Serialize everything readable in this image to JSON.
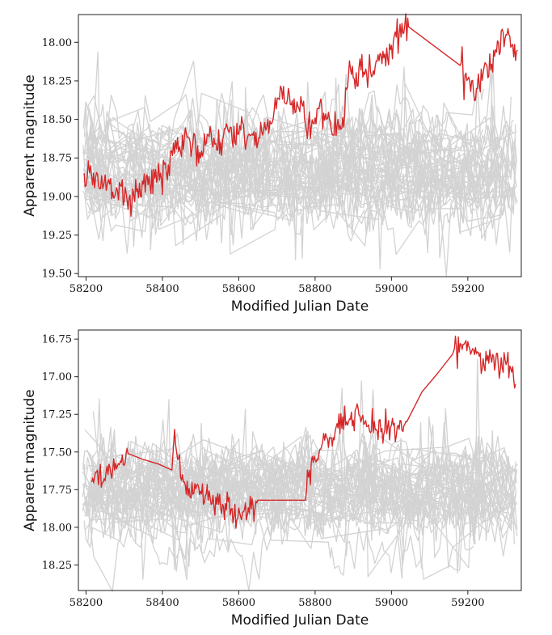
{
  "chart_data": [
    {
      "type": "line",
      "xlabel": "Modified Julian Date",
      "ylabel": "Apparent magnitude",
      "y_inverted": true,
      "grid": false,
      "xlim": [
        58180,
        59340
      ],
      "ylim": [
        17.82,
        19.52
      ],
      "x_ticks": [
        58200,
        58400,
        58600,
        58800,
        59000,
        59200
      ],
      "y_ticks": [
        "18.00",
        "18.25",
        "18.50",
        "18.75",
        "19.00",
        "19.25",
        "19.50"
      ],
      "background": {
        "color": "#d3d3d3",
        "count": 45,
        "center": 18.87,
        "spread": 0.15,
        "noise": 0.09
      },
      "highlight": {
        "color": "#d62728",
        "x": [
          58195,
          58200,
          58212,
          58225,
          58238,
          58250,
          58262,
          58275,
          58290,
          58305,
          58320,
          58335,
          58350,
          58380,
          58410,
          58432,
          58445,
          58470,
          58500,
          58520,
          58545,
          58570,
          58590,
          58610,
          58625,
          58640,
          58655,
          58668,
          58690,
          58712,
          58725,
          58740,
          58760,
          58790,
          58810,
          58830,
          58845,
          58860,
          58875,
          58890,
          58905,
          58920,
          58940,
          58960,
          58980,
          59000,
          59020,
          59045,
          59180,
          59195,
          59210,
          59225,
          59240,
          59260,
          59280,
          59300,
          59315,
          59330
        ],
        "y": [
          18.85,
          18.93,
          18.8,
          18.88,
          18.95,
          18.86,
          18.92,
          19.0,
          18.93,
          18.98,
          19.05,
          18.95,
          18.92,
          18.88,
          18.84,
          18.72,
          18.68,
          18.62,
          18.75,
          18.6,
          18.7,
          18.55,
          18.65,
          18.52,
          18.6,
          18.58,
          18.62,
          18.52,
          18.5,
          18.3,
          18.4,
          18.38,
          18.45,
          18.55,
          18.43,
          18.5,
          18.6,
          18.5,
          18.55,
          18.12,
          18.3,
          18.18,
          18.2,
          18.12,
          18.1,
          18.02,
          17.95,
          17.9,
          18.15,
          18.2,
          18.25,
          18.3,
          18.2,
          18.18,
          18.0,
          17.95,
          18.02,
          18.05
        ],
        "noise": 0.06
      }
    },
    {
      "type": "line",
      "xlabel": "Modified Julian Date",
      "ylabel": "Apparent magnitude",
      "y_inverted": true,
      "grid": false,
      "xlim": [
        58180,
        59340
      ],
      "ylim": [
        16.69,
        18.42
      ],
      "x_ticks": [
        58200,
        58400,
        58600,
        58800,
        59000,
        59200
      ],
      "y_ticks": [
        "16.75",
        "17.00",
        "17.25",
        "17.50",
        "17.75",
        "18.00",
        "18.25"
      ],
      "background": {
        "color": "#d3d3d3",
        "count": 45,
        "center": 17.77,
        "spread": 0.13,
        "noise": 0.09
      },
      "highlight": {
        "color": "#d62728",
        "x": [
          58215,
          58230,
          58245,
          58260,
          58275,
          58290,
          58310,
          58350,
          58390,
          58425,
          58432,
          58440,
          58460,
          58480,
          58500,
          58520,
          58540,
          58560,
          58580,
          58595,
          58610,
          58625,
          58650,
          58700,
          58775,
          58780,
          58800,
          58830,
          58850,
          58860,
          58875,
          58890,
          58905,
          58920,
          58940,
          58960,
          58980,
          59000,
          59020,
          59040,
          59080,
          59120,
          59160,
          59180,
          59195,
          59215,
          59240,
          59260,
          59280,
          59300,
          59315,
          59325
        ],
        "y": [
          17.7,
          17.62,
          17.7,
          17.58,
          17.62,
          17.56,
          17.51,
          17.55,
          17.58,
          17.62,
          17.35,
          17.55,
          17.72,
          17.78,
          17.76,
          17.82,
          17.8,
          17.86,
          17.88,
          17.95,
          17.9,
          17.87,
          17.82,
          17.82,
          17.82,
          17.62,
          17.55,
          17.4,
          17.42,
          17.34,
          17.35,
          17.28,
          17.22,
          17.3,
          17.32,
          17.35,
          17.38,
          17.32,
          17.35,
          17.3,
          17.1,
          16.98,
          16.85,
          16.78,
          16.76,
          16.82,
          16.88,
          16.87,
          16.93,
          16.92,
          16.97,
          17.05
        ],
        "noise": 0.05
      }
    }
  ]
}
